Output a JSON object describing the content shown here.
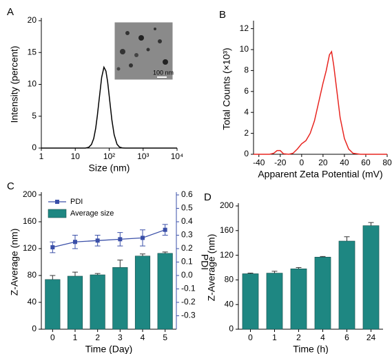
{
  "chart_data": [
    {
      "type": "line",
      "panel_label": "A",
      "xlabel": "Size (nm)",
      "ylabel": "Intensity (percent)",
      "xscale": "log",
      "xlim": [
        1,
        10000
      ],
      "xticks": [
        1,
        10,
        {
          "value": 100,
          "label": "10²"
        },
        {
          "value": 1000,
          "label": "10³"
        },
        {
          "value": 10000,
          "label": "10⁴"
        }
      ],
      "ylim": [
        0,
        20
      ],
      "yticks": [
        0,
        5,
        10,
        15,
        20
      ],
      "color": "#000000",
      "inset_label": "100 nm",
      "x": [
        1,
        10,
        20,
        25,
        30,
        35,
        40,
        45,
        50,
        60,
        70,
        80,
        90,
        100,
        120,
        140,
        170,
        200,
        250,
        300,
        1000,
        10000
      ],
      "values": [
        0,
        0,
        0,
        0.13,
        0.56,
        1.5,
        3.1,
        5.2,
        7.4,
        11.1,
        12.7,
        12.1,
        10.4,
        8.2,
        4.4,
        2.1,
        0.6,
        0.17,
        0.01,
        0,
        0,
        0
      ]
    },
    {
      "type": "line",
      "panel_label": "B",
      "xlabel": "Apparent Zeta Potential (mV)",
      "ylabel": "Total Counts (×10³)",
      "xlim": [
        -45,
        80
      ],
      "xticks": [
        -40,
        -20,
        0,
        20,
        40,
        60,
        80
      ],
      "ylim": [
        0,
        12.5
      ],
      "yticks": [
        0,
        2,
        4,
        6,
        8,
        10,
        12
      ],
      "color": "#e8241f",
      "x": [
        -45,
        -30,
        -26,
        -23,
        -20,
        -17,
        -12,
        -8,
        -4,
        0,
        4,
        8,
        12,
        16,
        20,
        23,
        26,
        28,
        30,
        33,
        36,
        40,
        44,
        48,
        55,
        80
      ],
      "values": [
        0,
        0,
        0.1,
        0.35,
        0.35,
        0.05,
        0,
        0.1,
        0.5,
        1.0,
        1.3,
        2.0,
        3.2,
        5.0,
        6.8,
        8.0,
        9.5,
        9.8,
        8.5,
        6.0,
        3.5,
        1.5,
        0.5,
        0.1,
        0,
        0
      ]
    },
    {
      "type": "bar",
      "panel_label": "C",
      "xlabel": "Time (Day)",
      "ylabel": "Z-Average (nm)",
      "y2label": "PDI",
      "legend": "upper left",
      "categories": [
        "0",
        "1",
        "2",
        "3",
        "4",
        "5"
      ],
      "ylim": [
        0,
        200
      ],
      "yticks": [
        0,
        40,
        80,
        120,
        160,
        200
      ],
      "y2lim": [
        -0.4,
        0.6
      ],
      "y2ticks": [
        -0.3,
        -0.2,
        -0.1,
        {
          "value": 0,
          "label": "0.0"
        },
        0.1,
        0.2,
        0.3,
        0.4,
        0.5,
        0.6
      ],
      "series": [
        {
          "name": "PDI",
          "type": "line",
          "axis": "y2",
          "color": "#3a4fa8",
          "values": [
            0.21,
            0.25,
            0.26,
            0.27,
            0.28,
            0.34
          ],
          "errors": [
            0.04,
            0.05,
            0.04,
            0.05,
            0.06,
            0.04
          ]
        },
        {
          "name": "Average size",
          "color": "#1e8782",
          "values": [
            74,
            79,
            81,
            92,
            109,
            113
          ],
          "errors": [
            6,
            6,
            2,
            11,
            3,
            2
          ]
        }
      ]
    },
    {
      "type": "bar",
      "panel_label": "D",
      "xlabel": "Time (h)",
      "ylabel": "Z-Average (nm)",
      "categories": [
        "0",
        "1",
        "2",
        "4",
        "6",
        "24"
      ],
      "ylim": [
        0,
        200
      ],
      "yticks": [
        0,
        40,
        80,
        120,
        160,
        200
      ],
      "series": [
        {
          "color": "#1e8782",
          "values": [
            90,
            91,
            98,
            117,
            143,
            168
          ],
          "errors": [
            1,
            3,
            2,
            1,
            7,
            5
          ]
        }
      ]
    }
  ]
}
